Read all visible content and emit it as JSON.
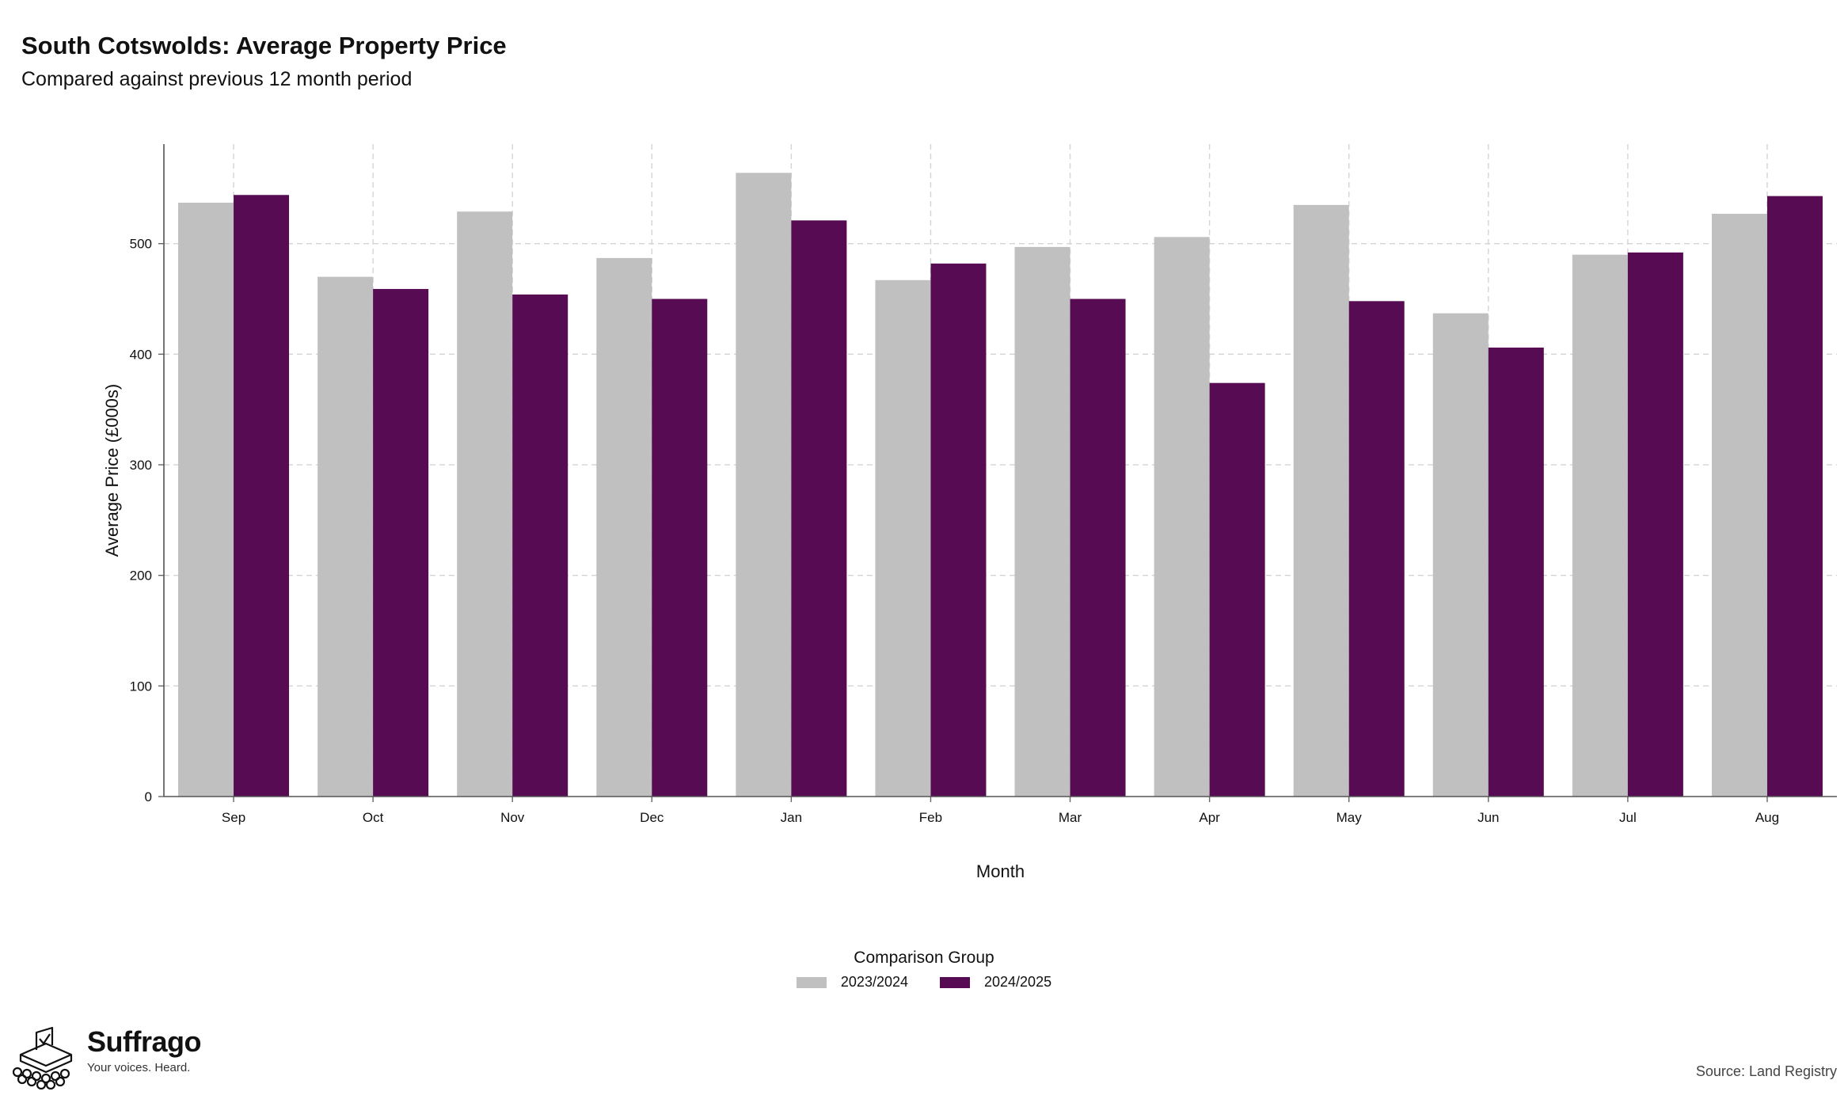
{
  "chart_data": {
    "type": "bar",
    "title": "South Cotswolds: Average Property Price",
    "subtitle": "Compared against previous 12 month period",
    "xlabel": "Month",
    "ylabel": "Average Price (£000s)",
    "categories": [
      "Sep",
      "Oct",
      "Nov",
      "Dec",
      "Jan",
      "Feb",
      "Mar",
      "Apr",
      "May",
      "Jun",
      "Jul",
      "Aug"
    ],
    "series": [
      {
        "name": "2023/2024",
        "color": "#c0c0c0",
        "values": [
          537,
          470,
          529,
          487,
          564,
          467,
          497,
          506,
          535,
          437,
          490,
          527
        ]
      },
      {
        "name": "2024/2025",
        "color": "#560b53",
        "values": [
          544,
          459,
          454,
          450,
          521,
          482,
          450,
          374,
          448,
          406,
          492,
          543
        ]
      }
    ],
    "ylim": [
      0,
      590
    ],
    "yticks": [
      0,
      100,
      200,
      300,
      400,
      500
    ],
    "grid": true,
    "legend": {
      "title": "Comparison Group",
      "position": "bottom-center"
    }
  },
  "branding": {
    "logo_name": "Suffrago",
    "tagline": "Your voices. Heard.",
    "logo_icon": "ballot-box-icon"
  },
  "source": "Source: Land Registry"
}
